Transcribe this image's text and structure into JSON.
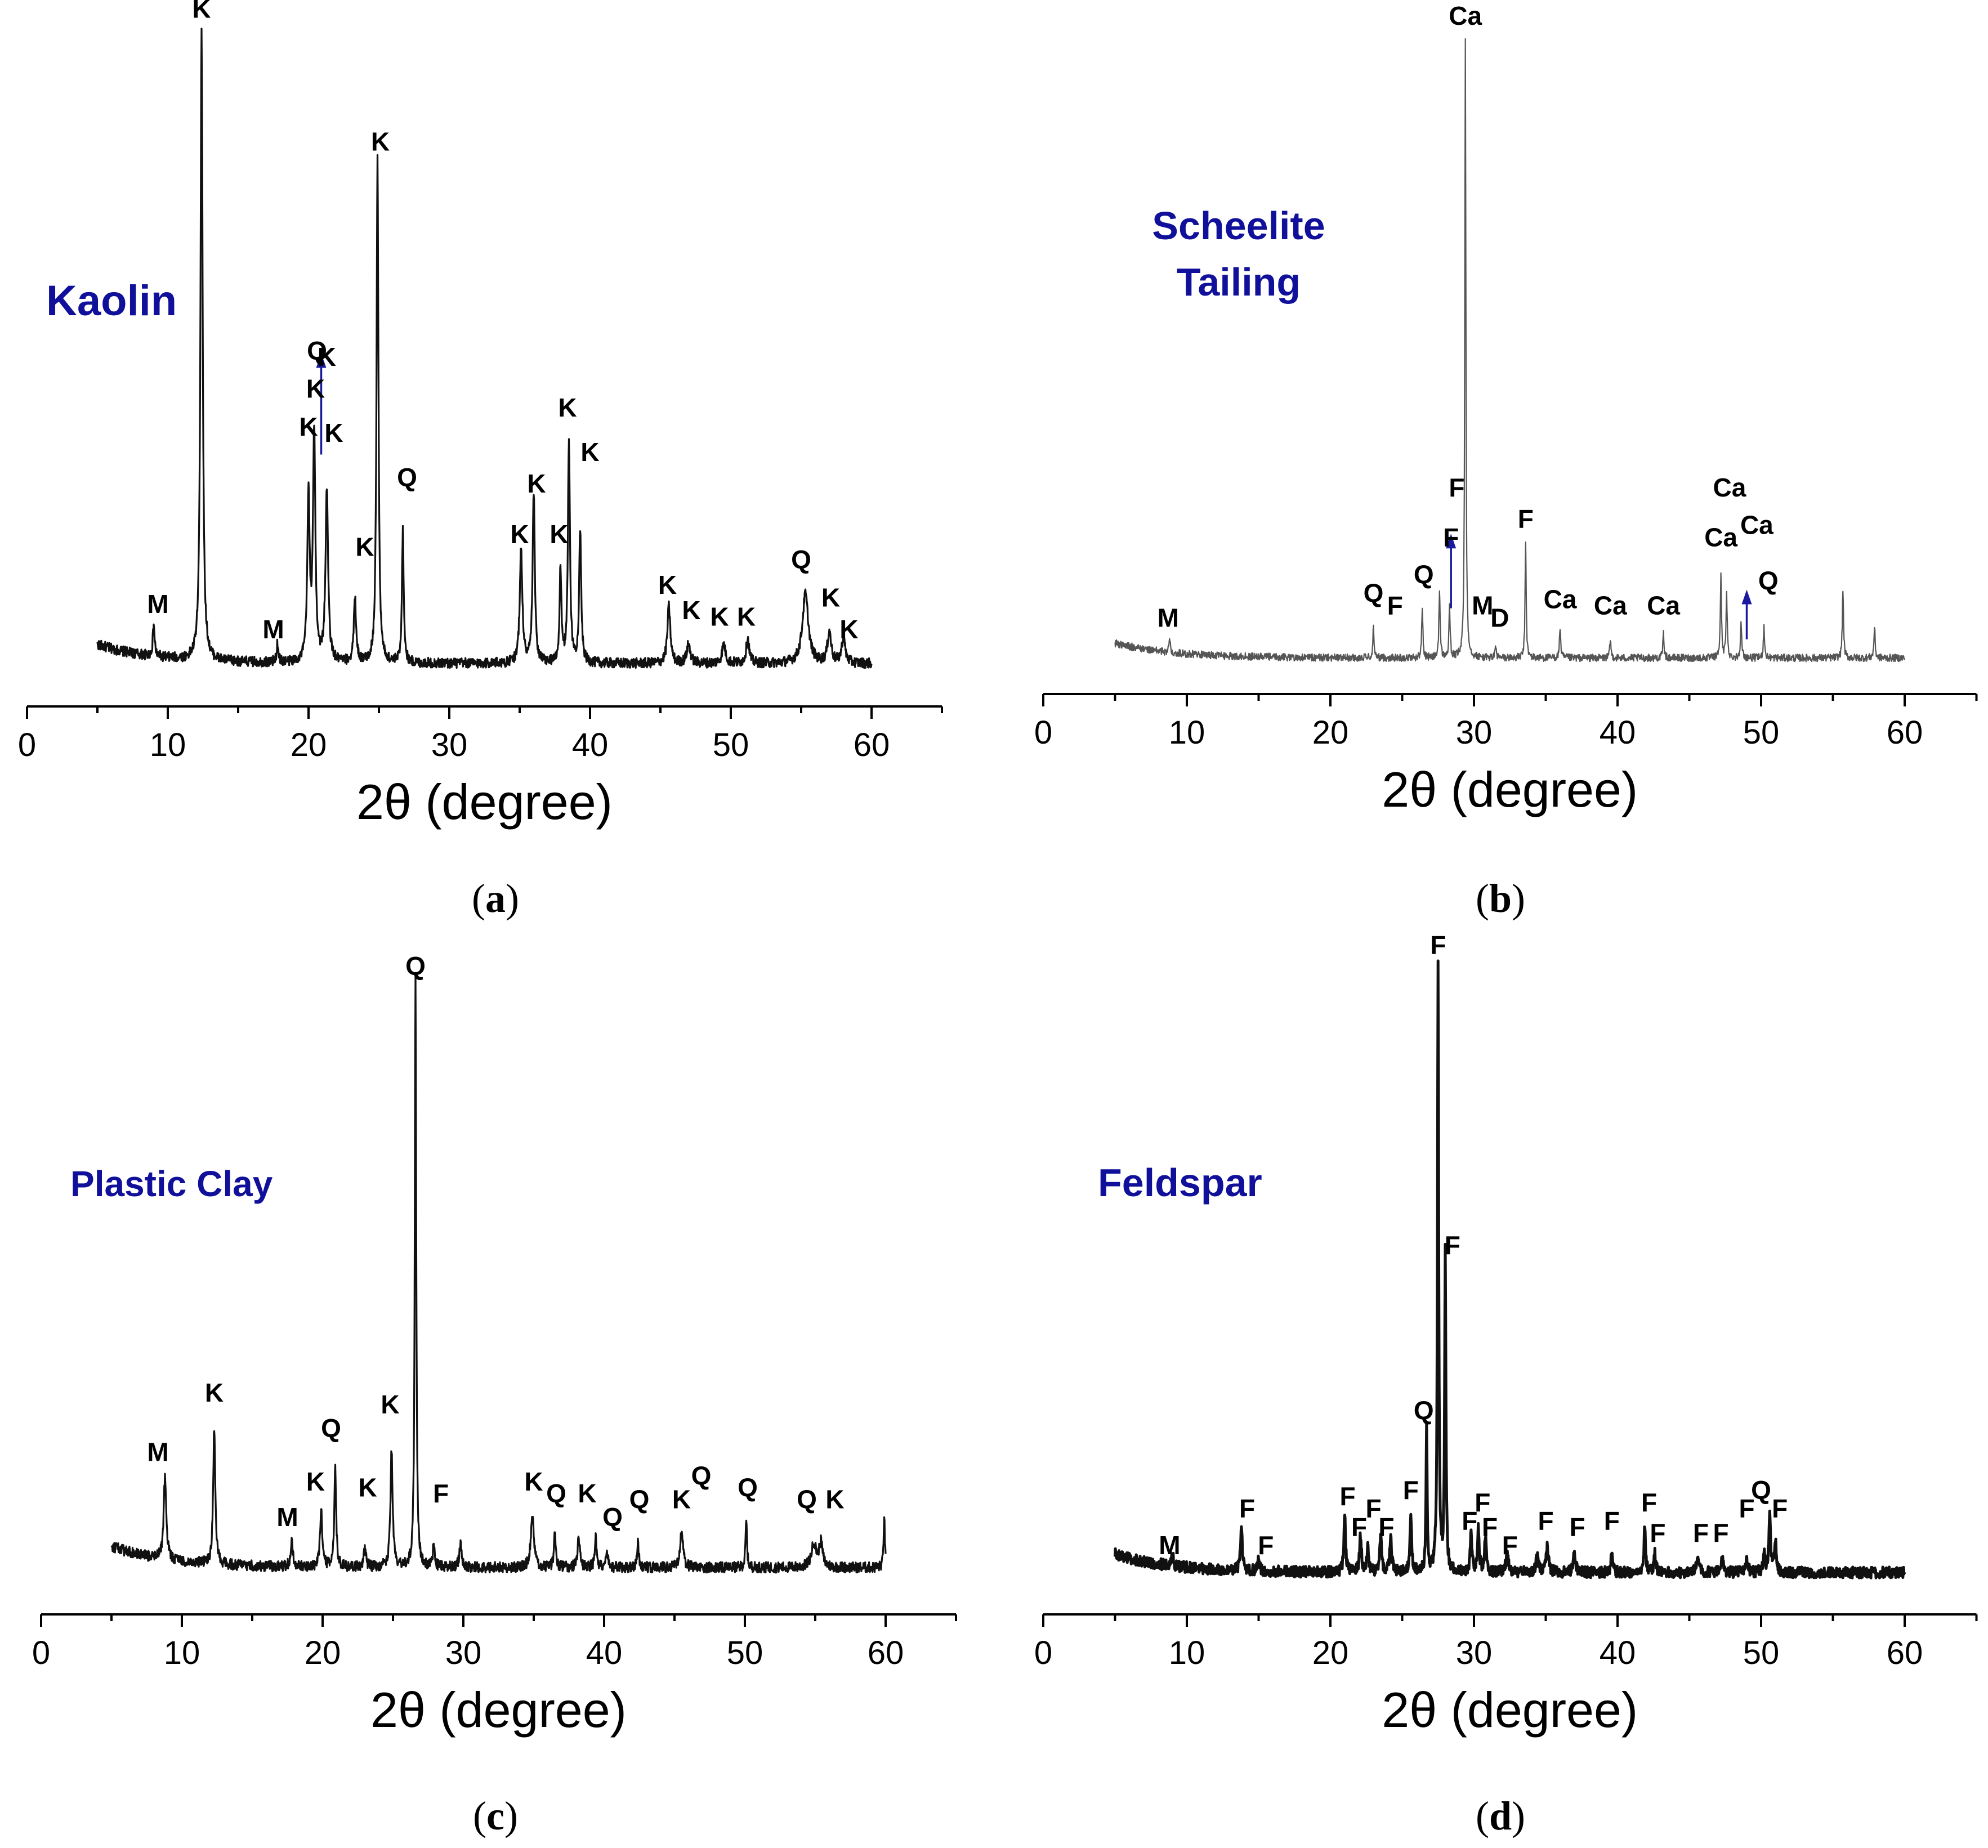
{
  "chart_data": [
    {
      "type": "line",
      "panel": "a",
      "caption_letter": "a",
      "sample_title": [
        "Kaolin"
      ],
      "xlabel": "2θ (degree)",
      "ylabel": "",
      "xlim": [
        0,
        65
      ],
      "x_ticks": [
        0,
        10,
        20,
        30,
        40,
        50,
        60
      ],
      "x_range": [
        5,
        60
      ],
      "baseline": 0.05,
      "noise": 0.008,
      "series": [
        {
          "name": "Kaolin",
          "peaks": [
            [
              9.0,
              0.05,
              0.15
            ],
            [
              12.4,
              1.0,
              0.18
            ],
            [
              17.8,
              0.03,
              0.15
            ],
            [
              20.0,
              0.26,
              0.2
            ],
            [
              20.4,
              0.36,
              0.2
            ],
            [
              21.3,
              0.27,
              0.22
            ],
            [
              23.3,
              0.1,
              0.2
            ],
            [
              24.9,
              0.8,
              0.16
            ],
            [
              26.7,
              0.21,
              0.15
            ],
            [
              35.1,
              0.18,
              0.22
            ],
            [
              36.0,
              0.27,
              0.18
            ],
            [
              37.9,
              0.15,
              0.15
            ],
            [
              38.5,
              0.35,
              0.17
            ],
            [
              39.3,
              0.21,
              0.17
            ],
            [
              45.6,
              0.09,
              0.25
            ],
            [
              47.0,
              0.03,
              0.3
            ],
            [
              49.5,
              0.03,
              0.3
            ],
            [
              51.2,
              0.04,
              0.25
            ],
            [
              55.3,
              0.11,
              0.5
            ],
            [
              57.0,
              0.05,
              0.3
            ],
            [
              58.0,
              0.04,
              0.3
            ]
          ]
        }
      ],
      "labels": [
        {
          "text": "K",
          "x": 12.4,
          "y": 1.07
        },
        {
          "text": "K",
          "x": 25.1,
          "y": 0.86
        },
        {
          "text": "K",
          "x": 20.0,
          "y": 0.41
        },
        {
          "text": "K",
          "x": 20.5,
          "y": 0.47
        },
        {
          "text": "Q",
          "x": 20.6,
          "y": 0.53
        },
        {
          "text": "K",
          "x": 21.3,
          "y": 0.52
        },
        {
          "text": "K",
          "x": 21.8,
          "y": 0.4
        },
        {
          "text": "Q",
          "x": 27.0,
          "y": 0.33
        },
        {
          "text": "K",
          "x": 24.0,
          "y": 0.22
        },
        {
          "text": "K",
          "x": 35.0,
          "y": 0.24
        },
        {
          "text": "K",
          "x": 36.2,
          "y": 0.32
        },
        {
          "text": "K",
          "x": 37.8,
          "y": 0.24
        },
        {
          "text": "K",
          "x": 38.4,
          "y": 0.44
        },
        {
          "text": "K",
          "x": 40.0,
          "y": 0.37
        },
        {
          "text": "K",
          "x": 45.5,
          "y": 0.16
        },
        {
          "text": "K",
          "x": 47.2,
          "y": 0.12
        },
        {
          "text": "K",
          "x": 49.2,
          "y": 0.11
        },
        {
          "text": "K",
          "x": 51.1,
          "y": 0.11
        },
        {
          "text": "Q",
          "x": 55.0,
          "y": 0.2
        },
        {
          "text": "K",
          "x": 57.1,
          "y": 0.14
        },
        {
          "text": "K",
          "x": 58.4,
          "y": 0.09
        },
        {
          "text": "M",
          "x": 9.3,
          "y": 0.13
        },
        {
          "text": "M",
          "x": 17.5,
          "y": 0.09
        }
      ],
      "arrows": [
        {
          "x": 20.9,
          "y0": 0.38,
          "y1": 0.54
        }
      ]
    },
    {
      "type": "line",
      "panel": "b",
      "caption_letter": "b",
      "sample_title": [
        "Scheelite",
        "Tailing"
      ],
      "xlabel": "2θ (degree)",
      "ylabel": "",
      "xlim": [
        0,
        65
      ],
      "x_ticks": [
        0,
        10,
        20,
        30,
        40,
        50,
        60
      ],
      "x_range": [
        5,
        60
      ],
      "baseline": 0.04,
      "noise": 0.006,
      "series": [
        {
          "name": "Scheelite Tailing",
          "peaks": [
            [
              8.8,
              0.02,
              0.12
            ],
            [
              23.0,
              0.05,
              0.1
            ],
            [
              26.4,
              0.08,
              0.1
            ],
            [
              27.6,
              0.11,
              0.1
            ],
            [
              28.3,
              0.08,
              0.1
            ],
            [
              29.4,
              1.0,
              0.09
            ],
            [
              31.5,
              0.02,
              0.1
            ],
            [
              33.6,
              0.19,
              0.09
            ],
            [
              36.0,
              0.05,
              0.1
            ],
            [
              39.5,
              0.03,
              0.1
            ],
            [
              43.2,
              0.04,
              0.1
            ],
            [
              47.2,
              0.13,
              0.1
            ],
            [
              47.6,
              0.1,
              0.1
            ],
            [
              48.6,
              0.06,
              0.1
            ],
            [
              50.2,
              0.05,
              0.1
            ],
            [
              55.7,
              0.11,
              0.1
            ],
            [
              57.9,
              0.05,
              0.1
            ]
          ]
        }
      ],
      "labels": [
        {
          "text": "Ca",
          "x": 29.4,
          "y": 1.06
        },
        {
          "text": "F",
          "x": 33.6,
          "y": 0.25
        },
        {
          "text": "F",
          "x": 28.8,
          "y": 0.3
        },
        {
          "text": "F",
          "x": 28.4,
          "y": 0.22
        },
        {
          "text": "Q",
          "x": 23.0,
          "y": 0.13
        },
        {
          "text": "F",
          "x": 24.5,
          "y": 0.11
        },
        {
          "text": "Q",
          "x": 26.5,
          "y": 0.16
        },
        {
          "text": "M",
          "x": 30.6,
          "y": 0.11
        },
        {
          "text": "D",
          "x": 31.8,
          "y": 0.09
        },
        {
          "text": "Ca",
          "x": 36.0,
          "y": 0.12
        },
        {
          "text": "Ca",
          "x": 39.5,
          "y": 0.11
        },
        {
          "text": "Ca",
          "x": 43.2,
          "y": 0.11
        },
        {
          "text": "Ca",
          "x": 47.2,
          "y": 0.22
        },
        {
          "text": "Ca",
          "x": 47.8,
          "y": 0.3
        },
        {
          "text": "Ca",
          "x": 49.7,
          "y": 0.24
        },
        {
          "text": "Q",
          "x": 50.5,
          "y": 0.15
        },
        {
          "text": "M",
          "x": 8.7,
          "y": 0.09
        }
      ],
      "arrows": [
        {
          "x": 28.4,
          "y0": 0.12,
          "y1": 0.24
        },
        {
          "x": 49.0,
          "y0": 0.07,
          "y1": 0.15
        }
      ]
    },
    {
      "type": "line",
      "panel": "c",
      "caption_letter": "c",
      "sample_title": [
        "Plastic Clay"
      ],
      "xlabel": "2θ (degree)",
      "ylabel": "",
      "xlim": [
        0,
        65
      ],
      "x_ticks": [
        0,
        10,
        20,
        30,
        40,
        50,
        60
      ],
      "x_range": [
        5,
        60
      ],
      "baseline": 0.06,
      "noise": 0.009,
      "series": [
        {
          "name": "Plastic Clay",
          "peaks": [
            [
              8.8,
              0.14,
              0.22
            ],
            [
              12.3,
              0.23,
              0.18
            ],
            [
              17.8,
              0.04,
              0.2
            ],
            [
              19.9,
              0.1,
              0.18
            ],
            [
              20.9,
              0.17,
              0.15
            ],
            [
              23.0,
              0.03,
              0.2
            ],
            [
              24.9,
              0.2,
              0.18
            ],
            [
              26.6,
              1.0,
              0.12
            ],
            [
              27.9,
              0.04,
              0.15
            ],
            [
              29.8,
              0.04,
              0.2
            ],
            [
              34.9,
              0.09,
              0.25
            ],
            [
              36.5,
              0.06,
              0.15
            ],
            [
              38.2,
              0.05,
              0.2
            ],
            [
              39.4,
              0.05,
              0.15
            ],
            [
              40.2,
              0.03,
              0.15
            ],
            [
              42.4,
              0.04,
              0.15
            ],
            [
              45.5,
              0.06,
              0.25
            ],
            [
              50.1,
              0.08,
              0.12
            ],
            [
              54.9,
              0.04,
              0.4
            ],
            [
              55.4,
              0.04,
              0.3
            ],
            [
              59.9,
              0.09,
              0.1
            ]
          ]
        }
      ],
      "labels": [
        {
          "text": "Q",
          "x": 26.6,
          "y": 1.06
        },
        {
          "text": "K",
          "x": 12.3,
          "y": 0.34
        },
        {
          "text": "M",
          "x": 8.3,
          "y": 0.24
        },
        {
          "text": "Q",
          "x": 20.6,
          "y": 0.28
        },
        {
          "text": "K",
          "x": 19.5,
          "y": 0.19
        },
        {
          "text": "M",
          "x": 17.5,
          "y": 0.13
        },
        {
          "text": "K",
          "x": 23.2,
          "y": 0.18
        },
        {
          "text": "K",
          "x": 24.8,
          "y": 0.32
        },
        {
          "text": "F",
          "x": 28.4,
          "y": 0.17
        },
        {
          "text": "K",
          "x": 35.0,
          "y": 0.19
        },
        {
          "text": "Q",
          "x": 36.6,
          "y": 0.17
        },
        {
          "text": "K",
          "x": 38.8,
          "y": 0.17
        },
        {
          "text": "Q",
          "x": 40.6,
          "y": 0.13
        },
        {
          "text": "Q",
          "x": 42.5,
          "y": 0.16
        },
        {
          "text": "K",
          "x": 45.5,
          "y": 0.16
        },
        {
          "text": "Q",
          "x": 46.9,
          "y": 0.2
        },
        {
          "text": "Q",
          "x": 50.2,
          "y": 0.18
        },
        {
          "text": "Q",
          "x": 54.4,
          "y": 0.16
        },
        {
          "text": "K",
          "x": 56.4,
          "y": 0.16
        }
      ],
      "arrows": []
    },
    {
      "type": "line",
      "panel": "d",
      "caption_letter": "d",
      "sample_title": [
        "Feldspar"
      ],
      "xlabel": "2θ (degree)",
      "ylabel": "",
      "xlim": [
        0,
        65
      ],
      "x_ticks": [
        0,
        10,
        20,
        30,
        40,
        50,
        60
      ],
      "x_range": [
        5,
        60
      ],
      "baseline": 0.05,
      "noise": 0.009,
      "series": [
        {
          "name": "Feldspar",
          "peaks": [
            [
              9.0,
              0.02,
              0.12
            ],
            [
              13.8,
              0.07,
              0.15
            ],
            [
              15.0,
              0.02,
              0.15
            ],
            [
              21.0,
              0.1,
              0.13
            ],
            [
              22.1,
              0.06,
              0.15
            ],
            [
              22.6,
              0.04,
              0.15
            ],
            [
              23.5,
              0.06,
              0.15
            ],
            [
              24.2,
              0.06,
              0.15
            ],
            [
              25.6,
              0.1,
              0.13
            ],
            [
              26.7,
              0.23,
              0.1
            ],
            [
              27.5,
              1.0,
              0.1
            ],
            [
              28.0,
              0.53,
              0.1
            ],
            [
              29.8,
              0.07,
              0.13
            ],
            [
              30.3,
              0.07,
              0.15
            ],
            [
              30.8,
              0.06,
              0.15
            ],
            [
              32.3,
              0.03,
              0.2
            ],
            [
              34.4,
              0.03,
              0.2
            ],
            [
              35.1,
              0.04,
              0.2
            ],
            [
              37.0,
              0.03,
              0.2
            ],
            [
              39.6,
              0.03,
              0.15
            ],
            [
              41.9,
              0.08,
              0.12
            ],
            [
              42.6,
              0.03,
              0.15
            ],
            [
              45.6,
              0.03,
              0.2
            ],
            [
              47.3,
              0.02,
              0.2
            ],
            [
              49.0,
              0.02,
              0.2
            ],
            [
              50.2,
              0.03,
              0.15
            ],
            [
              50.6,
              0.09,
              0.15
            ],
            [
              51.0,
              0.05,
              0.15
            ]
          ]
        }
      ],
      "labels": [
        {
          "text": "F",
          "x": 27.5,
          "y": 1.06
        },
        {
          "text": "F",
          "x": 28.5,
          "y": 0.57
        },
        {
          "text": "Q",
          "x": 26.5,
          "y": 0.3
        },
        {
          "text": "M",
          "x": 8.8,
          "y": 0.08
        },
        {
          "text": "F",
          "x": 14.2,
          "y": 0.14
        },
        {
          "text": "F",
          "x": 15.5,
          "y": 0.08
        },
        {
          "text": "F",
          "x": 21.2,
          "y": 0.16
        },
        {
          "text": "F",
          "x": 22.0,
          "y": 0.11
        },
        {
          "text": "F",
          "x": 23.0,
          "y": 0.14
        },
        {
          "text": "F",
          "x": 23.9,
          "y": 0.11
        },
        {
          "text": "F",
          "x": 25.6,
          "y": 0.17
        },
        {
          "text": "F",
          "x": 29.7,
          "y": 0.12
        },
        {
          "text": "F",
          "x": 30.6,
          "y": 0.15
        },
        {
          "text": "F",
          "x": 31.1,
          "y": 0.11
        },
        {
          "text": "F",
          "x": 32.5,
          "y": 0.08
        },
        {
          "text": "F",
          "x": 35.0,
          "y": 0.12
        },
        {
          "text": "F",
          "x": 37.2,
          "y": 0.11
        },
        {
          "text": "F",
          "x": 39.6,
          "y": 0.12
        },
        {
          "text": "F",
          "x": 42.2,
          "y": 0.15
        },
        {
          "text": "F",
          "x": 42.8,
          "y": 0.1
        },
        {
          "text": "F",
          "x": 45.8,
          "y": 0.1
        },
        {
          "text": "F",
          "x": 47.2,
          "y": 0.1
        },
        {
          "text": "F",
          "x": 49.0,
          "y": 0.14
        },
        {
          "text": "Q",
          "x": 50.0,
          "y": 0.17
        },
        {
          "text": "F",
          "x": 51.3,
          "y": 0.14
        }
      ],
      "arrows": []
    }
  ]
}
